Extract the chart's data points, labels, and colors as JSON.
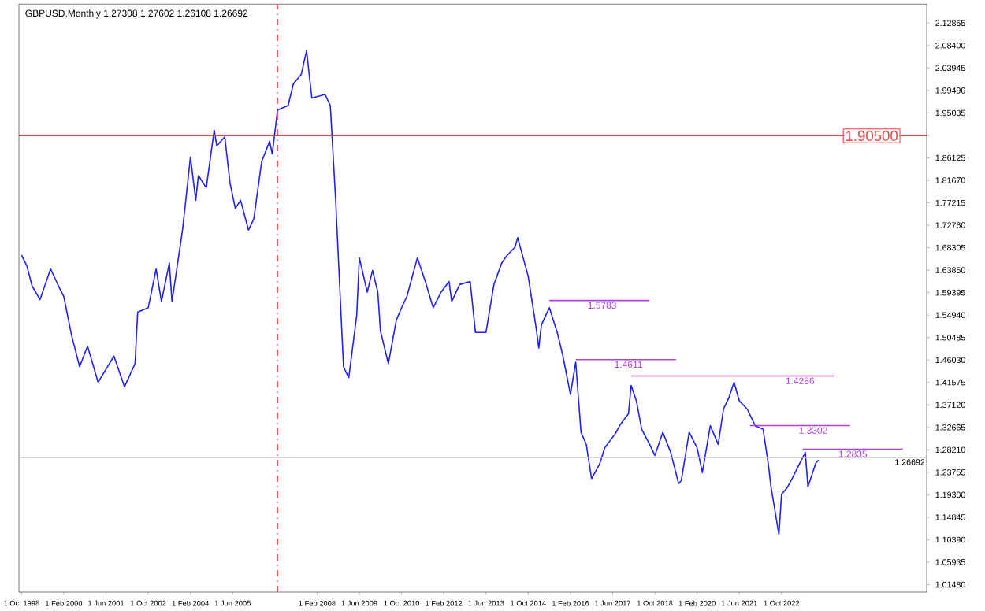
{
  "chart_data": {
    "type": "line",
    "title": "GBPUSD,Monthly  1.27308 1.27602 1.26108 1.26692",
    "xlim": [
      "1998-09",
      "2027-05"
    ],
    "ylim": [
      1.0,
      2.166
    ],
    "xticks": [
      {
        "value": "1998-10",
        "label": "1 Oct 1998"
      },
      {
        "value": "2000-02",
        "label": "1 Feb 2000"
      },
      {
        "value": "2001-06",
        "label": "1 Jun 2001"
      },
      {
        "value": "2002-10",
        "label": "1 Oct 2002"
      },
      {
        "value": "2004-02",
        "label": "1 Feb 2004"
      },
      {
        "value": "2005-06",
        "label": "1 Jun 2005"
      },
      {
        "value": "2008-02",
        "label": "1 Feb 2008"
      },
      {
        "value": "2009-06",
        "label": "1 Jun 2009"
      },
      {
        "value": "2010-10",
        "label": "1 Oct 2010"
      },
      {
        "value": "2012-02",
        "label": "1 Feb 2012"
      },
      {
        "value": "2013-06",
        "label": "1 Jun 2013"
      },
      {
        "value": "2014-10",
        "label": "1 Oct 2014"
      },
      {
        "value": "2016-02",
        "label": "1 Feb 2016"
      },
      {
        "value": "2017-06",
        "label": "1 Jun 2017"
      },
      {
        "value": "2018-10",
        "label": "1 Oct 2018"
      },
      {
        "value": "2020-02",
        "label": "1 Feb 2020"
      },
      {
        "value": "2021-06",
        "label": "1 Jun 2021"
      },
      {
        "value": "2022-10",
        "label": "1 Oct 2022"
      }
    ],
    "yticks": [
      {
        "value": 1.0148,
        "label": "1.01480"
      },
      {
        "value": 1.05935,
        "label": "1.05935"
      },
      {
        "value": 1.1039,
        "label": "1.10390"
      },
      {
        "value": 1.14845,
        "label": "1.14845"
      },
      {
        "value": 1.193,
        "label": "1.19300"
      },
      {
        "value": 1.23755,
        "label": "1.23755"
      },
      {
        "value": 1.2821,
        "label": "1.28210"
      },
      {
        "value": 1.32665,
        "label": "1.32665"
      },
      {
        "value": 1.3712,
        "label": "1.37120"
      },
      {
        "value": 1.41575,
        "label": "1.41575"
      },
      {
        "value": 1.4603,
        "label": "1.46030"
      },
      {
        "value": 1.50485,
        "label": "1.50485"
      },
      {
        "value": 1.5494,
        "label": "1.54940"
      },
      {
        "value": 1.59395,
        "label": "1.59395"
      },
      {
        "value": 1.6385,
        "label": "1.63850"
      },
      {
        "value": 1.68305,
        "label": "1.68305"
      },
      {
        "value": 1.7276,
        "label": "1.72760"
      },
      {
        "value": 1.77215,
        "label": "1.77215"
      },
      {
        "value": 1.8167,
        "label": "1.81670"
      },
      {
        "value": 1.86125,
        "label": "1.86125"
      },
      {
        "value": 1.9058,
        "label": null
      },
      {
        "value": 1.95035,
        "label": "1.95035"
      },
      {
        "value": 1.9949,
        "label": "1.99490"
      },
      {
        "value": 2.03945,
        "label": "2.03945"
      },
      {
        "value": 2.084,
        "label": "2.08400"
      },
      {
        "value": 2.12855,
        "label": "2.12855"
      }
    ],
    "series": [
      {
        "color": "#1f1fff",
        "x": [
          "1998-10",
          "1998-12",
          "1999-02",
          "1999-05",
          "1999-09",
          "1999-12",
          "2000-02",
          "2000-05",
          "2000-08",
          "2000-11",
          "2001-03",
          "2001-09",
          "2002-01",
          "2002-05",
          "2002-06",
          "2002-10",
          "2003-01",
          "2003-03",
          "2003-06",
          "2003-07",
          "2003-11",
          "2004-02",
          "2004-04",
          "2004-05",
          "2004-08",
          "2004-11",
          "2004-12",
          "2005-03",
          "2005-05",
          "2005-07",
          "2005-09",
          "2005-12",
          "2006-02",
          "2006-05",
          "2006-08",
          "2006-09",
          "2006-11",
          "2007-03",
          "2007-05",
          "2007-08",
          "2007-10",
          "2007-12",
          "2008-05",
          "2008-07",
          "2008-09",
          "2008-12",
          "2009-02",
          "2009-05",
          "2009-06",
          "2009-09",
          "2009-11",
          "2010-01",
          "2010-02",
          "2010-05",
          "2010-08",
          "2010-10",
          "2010-12",
          "2011-04",
          "2011-07",
          "2011-10",
          "2012-01",
          "2012-04",
          "2012-05",
          "2012-08",
          "2012-12",
          "2013-02",
          "2013-06",
          "2013-09",
          "2013-12",
          "2014-02",
          "2014-05",
          "2014-06",
          "2014-10",
          "2015-01",
          "2015-02",
          "2015-03",
          "2015-06",
          "2015-09",
          "2015-11",
          "2016-02",
          "2016-04",
          "2016-06",
          "2016-08",
          "2016-10",
          "2017-01",
          "2017-03",
          "2017-07",
          "2017-09",
          "2017-12",
          "2018-01",
          "2018-03",
          "2018-05",
          "2018-08",
          "2018-10",
          "2019-01",
          "2019-04",
          "2019-07",
          "2019-08",
          "2019-11",
          "2020-02",
          "2020-04",
          "2020-07",
          "2020-10",
          "2020-12",
          "2021-02",
          "2021-04",
          "2021-06",
          "2021-09",
          "2021-12",
          "2022-03",
          "2022-05",
          "2022-06",
          "2022-09",
          "2022-10",
          "2022-12",
          "2023-02",
          "2023-04",
          "2023-07",
          "2023-08",
          "2023-11",
          "2023-12"
        ],
        "values": [
          1.668,
          1.647,
          1.607,
          1.58,
          1.641,
          1.607,
          1.586,
          1.508,
          1.447,
          1.488,
          1.416,
          1.468,
          1.407,
          1.453,
          1.555,
          1.564,
          1.641,
          1.576,
          1.653,
          1.576,
          1.718,
          1.863,
          1.777,
          1.826,
          1.802,
          1.916,
          1.885,
          1.903,
          1.811,
          1.761,
          1.777,
          1.718,
          1.74,
          1.854,
          1.894,
          1.869,
          1.956,
          1.965,
          2.008,
          2.027,
          2.074,
          1.98,
          1.987,
          1.965,
          1.78,
          1.447,
          1.425,
          1.549,
          1.663,
          1.595,
          1.638,
          1.595,
          1.518,
          1.453,
          1.539,
          1.564,
          1.586,
          1.663,
          1.616,
          1.564,
          1.595,
          1.616,
          1.576,
          1.61,
          1.616,
          1.515,
          1.515,
          1.61,
          1.653,
          1.668,
          1.684,
          1.703,
          1.626,
          1.524,
          1.484,
          1.53,
          1.564,
          1.515,
          1.472,
          1.392,
          1.456,
          1.317,
          1.293,
          1.225,
          1.253,
          1.286,
          1.314,
          1.333,
          1.354,
          1.41,
          1.379,
          1.323,
          1.293,
          1.271,
          1.317,
          1.277,
          1.215,
          1.221,
          1.317,
          1.286,
          1.237,
          1.33,
          1.293,
          1.363,
          1.385,
          1.416,
          1.379,
          1.363,
          1.33,
          1.323,
          1.253,
          1.209,
          1.114,
          1.194,
          1.206,
          1.225,
          1.246,
          1.277,
          1.209,
          1.256,
          1.262
        ]
      },
      {
        "type": "line",
        "color": "#b040e0",
        "x": [
          "2015-06",
          "2018-08"
        ],
        "values": [
          1.5783,
          1.5783
        ]
      },
      {
        "type": "line",
        "color": "#b040e0",
        "x": [
          "2016-04",
          "2019-06"
        ],
        "values": [
          1.4611,
          1.4611
        ]
      },
      {
        "type": "line",
        "color": "#b040e0",
        "x": [
          "2018-01",
          "2024-06"
        ],
        "values": [
          1.4286,
          1.4286
        ]
      },
      {
        "type": "line",
        "color": "#b040e0",
        "x": [
          "2021-10",
          "2024-12"
        ],
        "values": [
          1.3302,
          1.3302
        ]
      },
      {
        "type": "line",
        "color": "#b040e0",
        "x": [
          "2023-06",
          "2026-08"
        ],
        "values": [
          1.2835,
          1.2835
        ]
      }
    ],
    "annotations": [
      {
        "text": "1.5783",
        "x": "2017-02",
        "y": 1.5783
      },
      {
        "text": "1.4611",
        "x": "2017-12",
        "y": 1.4611
      },
      {
        "text": "1.4286",
        "x": "2023-05",
        "y": 1.4286
      },
      {
        "text": "1.3302",
        "x": "2023-10",
        "y": 1.3302
      },
      {
        "text": "1.2835",
        "x": "2025-01",
        "y": 1.2835
      }
    ],
    "ref_lines": [
      {
        "axis": "y",
        "value": 1.905,
        "label": "1.90500",
        "color": "#ff4040"
      },
      {
        "axis": "y",
        "value": 1.26692,
        "label": "1.26692",
        "color": "#c8c8c8"
      },
      {
        "axis": "x",
        "value": "2006-11",
        "color": "#ff4040",
        "line_style": "dashed"
      }
    ],
    "grid": false,
    "marker": "none"
  }
}
